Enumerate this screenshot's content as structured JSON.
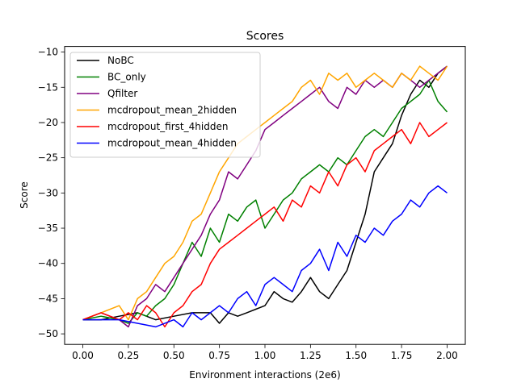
{
  "chart_data": {
    "type": "line",
    "title": "Scores",
    "xlabel": "Environment interactions (2e6)",
    "ylabel": "Score",
    "xlim": [
      -0.1,
      2.1
    ],
    "ylim": [
      -51.5,
      -9.2
    ],
    "xticks": [
      0.0,
      0.25,
      0.5,
      0.75,
      1.0,
      1.25,
      1.5,
      1.75,
      2.0
    ],
    "xtick_labels": [
      "0.00",
      "0.25",
      "0.50",
      "0.75",
      "1.00",
      "1.25",
      "1.50",
      "1.75",
      "2.00"
    ],
    "yticks": [
      -50,
      -45,
      -40,
      -35,
      -30,
      -25,
      -20,
      -15,
      -10
    ],
    "ytick_labels": [
      "−50",
      "−45",
      "−40",
      "−35",
      "−30",
      "−25",
      "−20",
      "−15",
      "−10"
    ],
    "grid": false,
    "legend_position": "top-left",
    "series": [
      {
        "name": "NoBC",
        "color": "#000000",
        "x": [
          0.0,
          0.1,
          0.2,
          0.3,
          0.4,
          0.5,
          0.6,
          0.7,
          0.75,
          0.8,
          0.85,
          0.9,
          0.95,
          1.0,
          1.05,
          1.1,
          1.15,
          1.2,
          1.25,
          1.3,
          1.35,
          1.4,
          1.45,
          1.5,
          1.55,
          1.6,
          1.65,
          1.7,
          1.75,
          1.8,
          1.85,
          1.9,
          1.95,
          2.0
        ],
        "y": [
          -48,
          -48,
          -47.5,
          -47,
          -48,
          -47.5,
          -47,
          -47,
          -48.5,
          -47,
          -47.5,
          -47,
          -46.5,
          -46,
          -44,
          -45,
          -45.5,
          -44,
          -42,
          -44,
          -45,
          -43,
          -41,
          -37,
          -33,
          -27,
          -25,
          -23,
          -19,
          -16,
          -14,
          -15,
          -13,
          -12
        ]
      },
      {
        "name": "BC_only",
        "color": "#008000",
        "x": [
          0.0,
          0.1,
          0.2,
          0.25,
          0.3,
          0.35,
          0.4,
          0.45,
          0.5,
          0.55,
          0.6,
          0.65,
          0.7,
          0.75,
          0.8,
          0.85,
          0.9,
          0.95,
          1.0,
          1.05,
          1.1,
          1.15,
          1.2,
          1.25,
          1.3,
          1.35,
          1.4,
          1.45,
          1.5,
          1.55,
          1.6,
          1.65,
          1.7,
          1.75,
          1.8,
          1.85,
          1.9,
          1.95,
          2.0
        ],
        "y": [
          -48,
          -47.5,
          -48,
          -48.5,
          -47,
          -47.5,
          -46,
          -45,
          -43,
          -40,
          -37,
          -39,
          -35,
          -37,
          -33,
          -34,
          -32,
          -31,
          -35,
          -33,
          -31,
          -30,
          -28,
          -27,
          -26,
          -27,
          -25,
          -26,
          -24,
          -22,
          -21,
          -22,
          -20,
          -18,
          -17,
          -16,
          -14,
          -17,
          -18.5
        ]
      },
      {
        "name": "Qfilter",
        "color": "#800080",
        "x": [
          0.0,
          0.1,
          0.2,
          0.25,
          0.3,
          0.35,
          0.4,
          0.45,
          0.5,
          0.55,
          0.6,
          0.65,
          0.7,
          0.75,
          0.8,
          0.85,
          0.9,
          0.95,
          1.0,
          1.05,
          1.1,
          1.15,
          1.2,
          1.25,
          1.3,
          1.35,
          1.4,
          1.45,
          1.5,
          1.55,
          1.6,
          1.65,
          1.7,
          1.75,
          1.8,
          1.85,
          1.9,
          1.95,
          2.0
        ],
        "y": [
          -48,
          -47,
          -48,
          -49,
          -46,
          -45,
          -43,
          -44,
          -42,
          -40,
          -38,
          -36,
          -33,
          -31,
          -27,
          -28,
          -26,
          -24,
          -21,
          -20,
          -19,
          -18,
          -17,
          -16,
          -15,
          -17,
          -18,
          -15,
          -16,
          -14,
          -15,
          -14,
          -15,
          -13,
          -14,
          -15,
          -14,
          -13,
          -12
        ]
      },
      {
        "name": "mcdropout_mean_2hidden",
        "color": "#ffa500",
        "x": [
          0.0,
          0.1,
          0.2,
          0.25,
          0.3,
          0.35,
          0.4,
          0.45,
          0.5,
          0.55,
          0.6,
          0.65,
          0.7,
          0.75,
          0.8,
          0.85,
          0.9,
          0.95,
          1.0,
          1.05,
          1.1,
          1.15,
          1.2,
          1.25,
          1.3,
          1.35,
          1.4,
          1.45,
          1.5,
          1.55,
          1.6,
          1.65,
          1.7,
          1.75,
          1.8,
          1.85,
          1.9,
          1.95,
          2.0
        ],
        "y": [
          -48,
          -47,
          -46,
          -48,
          -45,
          -44,
          -42,
          -40,
          -39,
          -37,
          -34,
          -33,
          -30,
          -27,
          -25,
          -23,
          -22,
          -21,
          -20,
          -19,
          -18,
          -17,
          -15,
          -14,
          -16,
          -13,
          -14,
          -13,
          -15,
          -14,
          -13,
          -14,
          -15,
          -13,
          -14,
          -12,
          -13,
          -14,
          -12
        ]
      },
      {
        "name": "mcdropout_first_4hidden",
        "color": "#ff0000",
        "x": [
          0.0,
          0.1,
          0.2,
          0.25,
          0.3,
          0.35,
          0.4,
          0.45,
          0.5,
          0.55,
          0.6,
          0.65,
          0.7,
          0.75,
          0.8,
          0.85,
          0.9,
          0.95,
          1.0,
          1.05,
          1.1,
          1.15,
          1.2,
          1.25,
          1.3,
          1.35,
          1.4,
          1.45,
          1.5,
          1.55,
          1.6,
          1.65,
          1.7,
          1.75,
          1.8,
          1.85,
          1.9,
          1.95,
          2.0
        ],
        "y": [
          -48,
          -47,
          -48,
          -47,
          -48,
          -46,
          -47,
          -49,
          -47,
          -46,
          -44,
          -43,
          -40,
          -38,
          -37,
          -36,
          -35,
          -34,
          -33,
          -32,
          -34,
          -31,
          -32,
          -29,
          -30,
          -27,
          -29,
          -26,
          -25,
          -27,
          -24,
          -23,
          -22,
          -21,
          -23,
          -20,
          -22,
          -21,
          -20
        ]
      },
      {
        "name": "mcdropout_mean_4hidden",
        "color": "#0000ff",
        "x": [
          0.0,
          0.1,
          0.2,
          0.3,
          0.4,
          0.5,
          0.55,
          0.6,
          0.65,
          0.7,
          0.75,
          0.8,
          0.85,
          0.9,
          0.95,
          1.0,
          1.05,
          1.1,
          1.15,
          1.2,
          1.25,
          1.3,
          1.35,
          1.4,
          1.45,
          1.5,
          1.55,
          1.6,
          1.65,
          1.7,
          1.75,
          1.8,
          1.85,
          1.9,
          1.95,
          2.0
        ],
        "y": [
          -48,
          -48,
          -48,
          -48.5,
          -49,
          -48,
          -49,
          -47,
          -48,
          -47,
          -46,
          -47,
          -45,
          -44,
          -46,
          -43,
          -42,
          -43,
          -44,
          -41,
          -40,
          -38,
          -41,
          -37,
          -39,
          -36,
          -37,
          -35,
          -36,
          -34,
          -33,
          -31,
          -32,
          -30,
          -29,
          -30
        ]
      }
    ]
  }
}
